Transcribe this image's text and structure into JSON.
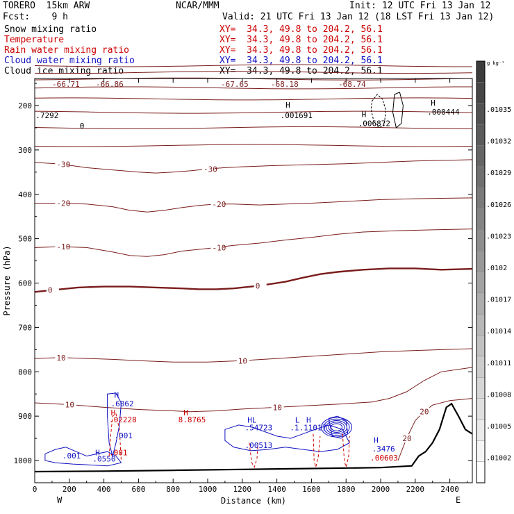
{
  "header": {
    "model": "TORERO  15km ARW",
    "center": "NCAR/MMM",
    "init": "Init: 12 UTC Fri 13 Jan 12",
    "fcst": "Fcst:    9 h",
    "valid": "Valid: 21 UTC Fri 13 Jan 12 (18 LST Fri 13 Jan 12)"
  },
  "fields": [
    {
      "name": "Snow mixing ratio",
      "xy": "XY=  34.3, 49.8 to 204.2, 56.1",
      "color": "#000000"
    },
    {
      "name": "Temperature",
      "xy": "XY=  34.3, 49.8 to 204.2, 56.1",
      "color": "#cc0000"
    },
    {
      "name": "Rain water mixing ratio",
      "xy": "XY=  34.3, 49.8 to 204.2, 56.1",
      "color": "#cc0000"
    },
    {
      "name": "Cloud water mixing ratio",
      "xy": "XY=  34.3, 49.8 to 204.2, 56.1",
      "color": "#1010c0"
    },
    {
      "name": "Cloud ice mixing ratio",
      "xy": "XY=  34.3, 49.8 to 204.2, 56.1",
      "color": "#000000"
    }
  ],
  "chart_data": {
    "type": "contour",
    "xlabel": "Distance (km)",
    "ylabel": "Pressure (hPa)",
    "xlim": [
      0,
      2530
    ],
    "ylim": [
      1050,
      100
    ],
    "x_ticks": [
      0,
      200,
      400,
      600,
      800,
      1000,
      1200,
      1400,
      1600,
      1800,
      2000,
      2200,
      2400
    ],
    "y_ticks": [
      200,
      300,
      400,
      500,
      600,
      700,
      800,
      900,
      1000
    ],
    "x_endpoints": {
      "left": "W",
      "right": "E"
    },
    "colorbar": {
      "unit": "g kg⁻¹",
      "labels": [
        ".01035",
        ".01032",
        ".01029",
        ".01026",
        ".01023",
        ".0102",
        ".01017",
        ".01014",
        ".01011",
        ".01008",
        ".01005",
        ".01002"
      ]
    },
    "top_values": [
      "-66.71",
      "-66.86",
      "-67.65",
      "-68.18",
      "-68.74"
    ],
    "temperature_contours": [
      {
        "label": "-30",
        "points": [
          [
            0,
            328
          ],
          [
            150,
            332
          ],
          [
            300,
            340
          ],
          [
            450,
            345
          ],
          [
            600,
            350
          ],
          [
            700,
            352
          ],
          [
            800,
            350
          ],
          [
            900,
            347
          ],
          [
            1000,
            343
          ],
          [
            1100,
            340
          ],
          [
            1200,
            338
          ],
          [
            1400,
            335
          ],
          [
            1600,
            333
          ],
          [
            1800,
            331
          ],
          [
            2000,
            328
          ],
          [
            2200,
            325
          ],
          [
            2530,
            322
          ]
        ]
      },
      {
        "label": "-20",
        "points": [
          [
            0,
            420
          ],
          [
            150,
            420
          ],
          [
            300,
            422
          ],
          [
            450,
            428
          ],
          [
            550,
            436
          ],
          [
            650,
            440
          ],
          [
            750,
            436
          ],
          [
            850,
            430
          ],
          [
            950,
            425
          ],
          [
            1050,
            422
          ],
          [
            1150,
            422
          ],
          [
            1300,
            424
          ],
          [
            1450,
            422
          ],
          [
            1600,
            420
          ],
          [
            1800,
            416
          ],
          [
            2000,
            412
          ],
          [
            2200,
            410
          ],
          [
            2530,
            408
          ]
        ]
      },
      {
        "label": "-10",
        "points": [
          [
            0,
            520
          ],
          [
            150,
            518
          ],
          [
            300,
            520
          ],
          [
            450,
            530
          ],
          [
            550,
            538
          ],
          [
            650,
            540
          ],
          [
            750,
            536
          ],
          [
            850,
            528
          ],
          [
            950,
            524
          ],
          [
            1050,
            520
          ],
          [
            1150,
            515
          ],
          [
            1300,
            510
          ],
          [
            1450,
            503
          ],
          [
            1600,
            497
          ],
          [
            1750,
            490
          ],
          [
            1900,
            485
          ],
          [
            2100,
            482
          ],
          [
            2300,
            480
          ],
          [
            2530,
            478
          ]
        ]
      },
      {
        "label": "0",
        "bold": true,
        "points": [
          [
            0,
            620
          ],
          [
            100,
            616
          ],
          [
            250,
            610
          ],
          [
            400,
            608
          ],
          [
            550,
            608
          ],
          [
            700,
            610
          ],
          [
            850,
            612
          ],
          [
            950,
            614
          ],
          [
            1050,
            614
          ],
          [
            1150,
            612
          ],
          [
            1300,
            606
          ],
          [
            1450,
            597
          ],
          [
            1550,
            588
          ],
          [
            1650,
            580
          ],
          [
            1750,
            575
          ],
          [
            1900,
            570
          ],
          [
            2050,
            567
          ],
          [
            2200,
            567
          ],
          [
            2350,
            570
          ],
          [
            2530,
            568
          ]
        ]
      },
      {
        "label": "10",
        "points": [
          [
            0,
            770
          ],
          [
            150,
            768
          ],
          [
            300,
            770
          ],
          [
            450,
            772
          ],
          [
            600,
            775
          ],
          [
            800,
            778
          ],
          [
            1000,
            778
          ],
          [
            1200,
            775
          ],
          [
            1400,
            770
          ],
          [
            1600,
            765
          ],
          [
            1800,
            760
          ],
          [
            2000,
            755
          ],
          [
            2200,
            752
          ],
          [
            2530,
            748
          ]
        ]
      },
      {
        "label": "10",
        "points": [
          [
            0,
            870
          ],
          [
            200,
            874
          ],
          [
            400,
            880
          ],
          [
            600,
            885
          ],
          [
            800,
            888
          ],
          [
            900,
            890
          ],
          [
            1050,
            888
          ],
          [
            1200,
            884
          ],
          [
            1400,
            880
          ],
          [
            1600,
            876
          ],
          [
            1800,
            872
          ],
          [
            1950,
            868
          ],
          [
            2050,
            860
          ],
          [
            2150,
            845
          ],
          [
            2250,
            820
          ],
          [
            2350,
            800
          ],
          [
            2530,
            790
          ]
        ]
      },
      {
        "label": "20",
        "points": [
          [
            2100,
            1000
          ],
          [
            2150,
            950
          ],
          [
            2200,
            910
          ],
          [
            2250,
            890
          ],
          [
            2300,
            875
          ],
          [
            2400,
            865
          ],
          [
            2530,
            860
          ]
        ]
      }
    ],
    "isobar_lines_hpa": [
      110,
      125,
      140,
      160,
      185,
      215,
      250,
      290
    ],
    "point_labels": [
      {
        "text": "H",
        "x": 1450,
        "p": 205,
        "color": "#000000"
      },
      {
        "text": ".001691",
        "x": 1420,
        "p": 228,
        "color": "#000000"
      },
      {
        "text": "H",
        "x": 1890,
        "p": 226,
        "color": "#000000"
      },
      {
        "text": ".006872",
        "x": 1870,
        "p": 246,
        "color": "#000000"
      },
      {
        "text": "H",
        "x": 2290,
        "p": 200,
        "color": "#000000"
      },
      {
        "text": ".000444",
        "x": 2270,
        "p": 220,
        "color": "#000000"
      },
      {
        "text": ".7292",
        "x": 5,
        "p": 228,
        "color": "#000000"
      },
      {
        "text": "0",
        "x": 260,
        "p": 252,
        "color": "#000000"
      },
      {
        "text": "H",
        "x": 460,
        "p": 858,
        "color": "#1010c0"
      },
      {
        "text": ".6062",
        "x": 440,
        "p": 878,
        "color": "#1010c0"
      },
      {
        "text": "H",
        "x": 440,
        "p": 898,
        "color": "#cc0000"
      },
      {
        "text": ".02228",
        "x": 430,
        "p": 914,
        "color": "#cc0000"
      },
      {
        "text": ".001",
        "x": 460,
        "p": 950,
        "color": "#1010c0"
      },
      {
        "text": "H",
        "x": 350,
        "p": 988,
        "color": "#1010c0"
      },
      {
        "text": ".0550",
        "x": 335,
        "p": 1002,
        "color": "#1010c0"
      },
      {
        "text": ".001",
        "x": 430,
        "p": 988,
        "color": "#cc0000"
      },
      {
        "text": ".001",
        "x": 160,
        "p": 995,
        "color": "#1010c0"
      },
      {
        "text": "H",
        "x": 860,
        "p": 898,
        "color": "#cc0000"
      },
      {
        "text": "8.8765",
        "x": 830,
        "p": 914,
        "color": "#cc0000"
      },
      {
        "text": "HL",
        "x": 1230,
        "p": 915,
        "color": "#1010c0"
      },
      {
        "text": ".54723",
        "x": 1215,
        "p": 932,
        "color": "#1010c0"
      },
      {
        "text": ".00513",
        "x": 1215,
        "p": 972,
        "color": "#1010c0"
      },
      {
        "text": "L",
        "x": 1505,
        "p": 915,
        "color": "#1010c0"
      },
      {
        "text": ".1.11017",
        "x": 1475,
        "p": 932,
        "color": "#1010c0"
      },
      {
        "text": "H",
        "x": 1570,
        "p": 915,
        "color": "#1010c0"
      },
      {
        "text": "H",
        "x": 1960,
        "p": 960,
        "color": "#1010c0"
      },
      {
        "text": ".3476",
        "x": 1950,
        "p": 980,
        "color": "#1010c0"
      },
      {
        "text": ".00603",
        "x": 1940,
        "p": 1000,
        "color": "#cc0000"
      }
    ]
  }
}
